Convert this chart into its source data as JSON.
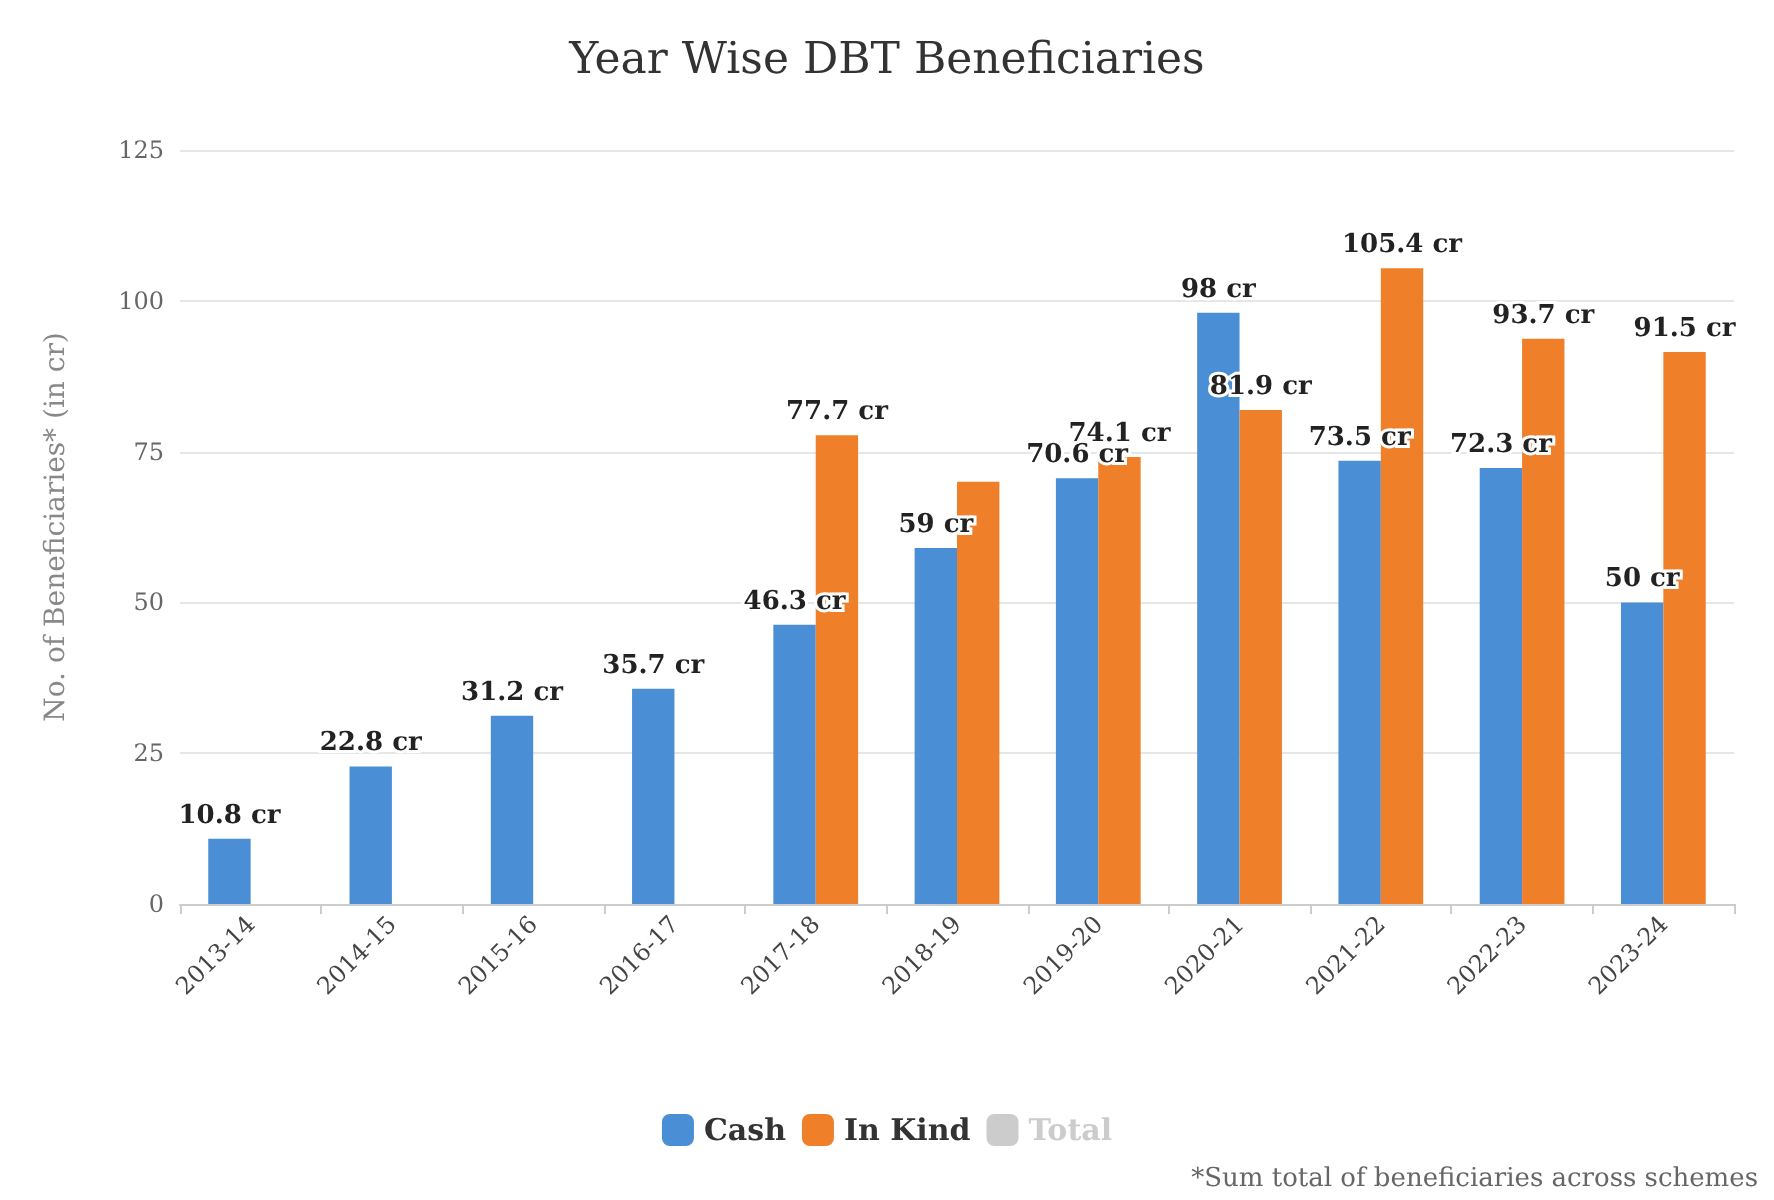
{
  "chart_data": {
    "type": "bar",
    "title": "Year Wise DBT Beneficiaries",
    "ylabel": "No. of Beneficiaries* (in cr)",
    "categories": [
      "2013-14",
      "2014-15",
      "2015-16",
      "2016-17",
      "2017-18",
      "2018-19",
      "2019-20",
      "2020-21",
      "2021-22",
      "2022-23",
      "2023-24"
    ],
    "series": [
      {
        "name": "Cash",
        "color": "#4a8fd6",
        "values": [
          10.8,
          22.8,
          31.2,
          35.7,
          46.3,
          59,
          70.6,
          98,
          73.5,
          72.3,
          50
        ],
        "value_labels": [
          "10.8 cr",
          "22.8 cr",
          "31.2 cr",
          "35.7 cr",
          "46.3 cr",
          "59 cr",
          "70.6 cr",
          "98 cr",
          "73.5 cr",
          "72.3 cr",
          "50 cr"
        ]
      },
      {
        "name": "In Kind",
        "color": "#f07f2a",
        "values": [
          null,
          null,
          null,
          null,
          77.7,
          70,
          74.1,
          81.9,
          105.4,
          93.7,
          91.5
        ],
        "value_labels": [
          null,
          null,
          null,
          null,
          "77.7 cr",
          null,
          "74.1 cr",
          "81.9 cr",
          "105.4 cr",
          "93.7 cr",
          "91.5 cr"
        ]
      },
      {
        "name": "Total",
        "color": "#cccccc",
        "values": [
          null,
          null,
          null,
          null,
          null,
          null,
          null,
          null,
          null,
          null,
          null
        ]
      }
    ],
    "ylim": [
      0,
      125
    ],
    "yticks": [
      0,
      25,
      50,
      75,
      100,
      125
    ],
    "grid": "y",
    "legend": "bottom",
    "annotations": [
      "*Sum total of beneficiaries across schemes"
    ]
  }
}
